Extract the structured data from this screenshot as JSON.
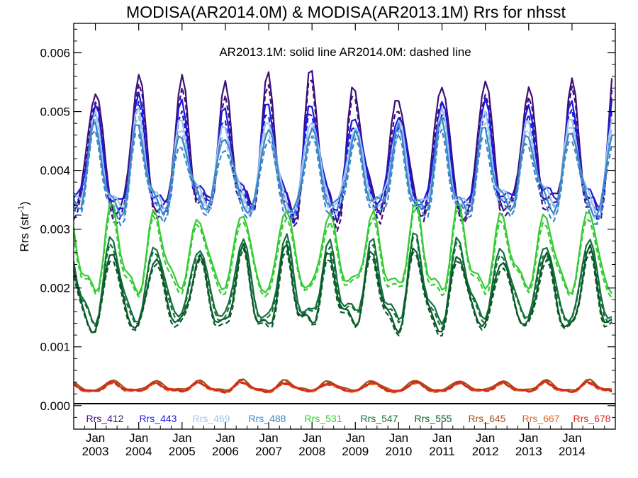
{
  "chart_data": {
    "type": "line",
    "title": "MODISA(AR2014.0M) & MODISA(AR2013.1M)  Rrs for nhsst",
    "annotation": "AR2013.1M: solid line   AR2014.0M: dashed line",
    "ylabel": "Rrs (str",
    "ylabel_sup": "-1",
    "ylabel_close": ")",
    "xlabel": "",
    "ylim": [
      -0.0004,
      0.0065
    ],
    "xlim": [
      2002.5,
      2015.0
    ],
    "y_ticks": [
      "0.000",
      "0.001",
      "0.002",
      "0.003",
      "0.004",
      "0.005",
      "0.006"
    ],
    "y_tick_values": [
      0,
      0.001,
      0.002,
      0.003,
      0.004,
      0.005,
      0.006
    ],
    "x_ticks": [
      {
        "month": "Jan",
        "year": "2003",
        "x": 2003
      },
      {
        "month": "Jan",
        "year": "2004",
        "x": 2004
      },
      {
        "month": "Jan",
        "year": "2005",
        "x": 2005
      },
      {
        "month": "Jan",
        "year": "2006",
        "x": 2006
      },
      {
        "month": "Jan",
        "year": "2007",
        "x": 2007
      },
      {
        "month": "Jan",
        "year": "2008",
        "x": 2008
      },
      {
        "month": "Jan",
        "year": "2009",
        "x": 2009
      },
      {
        "month": "Jan",
        "year": "2010",
        "x": 2010
      },
      {
        "month": "Jan",
        "year": "2011",
        "x": 2011
      },
      {
        "month": "Jan",
        "year": "2012",
        "x": 2012
      },
      {
        "month": "Jan",
        "year": "2013",
        "x": 2013
      },
      {
        "month": "Jan",
        "year": "2014",
        "x": 2014
      }
    ],
    "grid": false,
    "zero_line": true,
    "legend_position": "bottom",
    "line_styles": {
      "AR2013.1M": "solid",
      "AR2014.0M": "dashed"
    },
    "x": [
      2002.5,
      2002.58,
      2002.67,
      2002.75,
      2002.83,
      2002.92,
      2003.0,
      2003.08,
      2003.17,
      2003.25,
      2003.33,
      2003.42,
      2003.5,
      2003.58,
      2003.67,
      2003.75,
      2003.83,
      2003.92,
      2004.0,
      2004.08,
      2004.17,
      2004.25,
      2004.33,
      2004.42,
      2004.5,
      2004.58,
      2004.67,
      2004.75,
      2004.83,
      2004.92,
      2005.0,
      2005.08,
      2005.17,
      2005.25,
      2005.33,
      2005.42,
      2005.5,
      2005.58,
      2005.67,
      2005.75,
      2005.83,
      2005.92,
      2006.0,
      2006.08,
      2006.17,
      2006.25,
      2006.33,
      2006.42,
      2006.5,
      2006.58,
      2006.67,
      2006.75,
      2006.83,
      2006.92,
      2007.0,
      2007.08,
      2007.17,
      2007.25,
      2007.33,
      2007.42,
      2007.5,
      2007.58,
      2007.67,
      2007.75,
      2007.83,
      2007.92,
      2008.0,
      2008.08,
      2008.17,
      2008.25,
      2008.33,
      2008.42,
      2008.5,
      2008.58,
      2008.67,
      2008.75,
      2008.83,
      2008.92,
      2009.0,
      2009.08,
      2009.17,
      2009.25,
      2009.33,
      2009.42,
      2009.5,
      2009.58,
      2009.67,
      2009.75,
      2009.83,
      2009.92,
      2010.0,
      2010.08,
      2010.17,
      2010.25,
      2010.33,
      2010.42,
      2010.5,
      2010.58,
      2010.67,
      2010.75,
      2010.83,
      2010.92,
      2011.0,
      2011.08,
      2011.17,
      2011.25,
      2011.33,
      2011.42,
      2011.5,
      2011.58,
      2011.67,
      2011.75,
      2011.83,
      2011.92,
      2012.0,
      2012.08,
      2012.17,
      2012.25,
      2012.33,
      2012.42,
      2012.5,
      2012.58,
      2012.67,
      2012.75,
      2012.83,
      2012.92,
      2013.0,
      2013.08,
      2013.17,
      2013.25,
      2013.33,
      2013.42,
      2013.5,
      2013.58,
      2013.67,
      2013.75,
      2013.83,
      2013.92,
      2014.0,
      2014.08,
      2014.17,
      2014.25,
      2014.33,
      2014.42,
      2014.5,
      2014.58,
      2014.67,
      2014.75,
      2014.83,
      2014.92
    ],
    "series": [
      {
        "name": "Rrs_412",
        "color": "#3d0f7a",
        "base": 0.0042,
        "amp": 0.00105,
        "shift": 0.5
      },
      {
        "name": "Rrs_443",
        "color": "#1a1ae0",
        "base": 0.0041,
        "amp": 0.0008,
        "shift": 0.5
      },
      {
        "name": "Rrs_469",
        "color": "#9ec5ec",
        "base": 0.004,
        "amp": 0.0007,
        "shift": 0.5
      },
      {
        "name": "Rrs_488",
        "color": "#3a86c8",
        "base": 0.0039,
        "amp": 0.00065,
        "shift": 0.5
      },
      {
        "name": "Rrs_531",
        "color": "#33cc33",
        "base": 0.00255,
        "amp": 0.00062,
        "shift": 0.1
      },
      {
        "name": "Rrs_547",
        "color": "#12703a",
        "base": 0.00205,
        "amp": 0.00062,
        "shift": 0.1
      },
      {
        "name": "Rrs_555",
        "color": "#0b5a2a",
        "base": 0.00188,
        "amp": 0.0006,
        "shift": 0.1
      },
      {
        "name": "Rrs_645",
        "color": "#a0521e",
        "base": 0.00033,
        "amp": 8e-05,
        "shift": 0.1
      },
      {
        "name": "Rrs_667",
        "color": "#e0661a",
        "base": 0.0003,
        "amp": 7e-05,
        "shift": 0.1
      },
      {
        "name": "Rrs_678",
        "color": "#d42a1e",
        "base": 0.00031,
        "amp": 7e-05,
        "shift": 0.1
      }
    ]
  }
}
